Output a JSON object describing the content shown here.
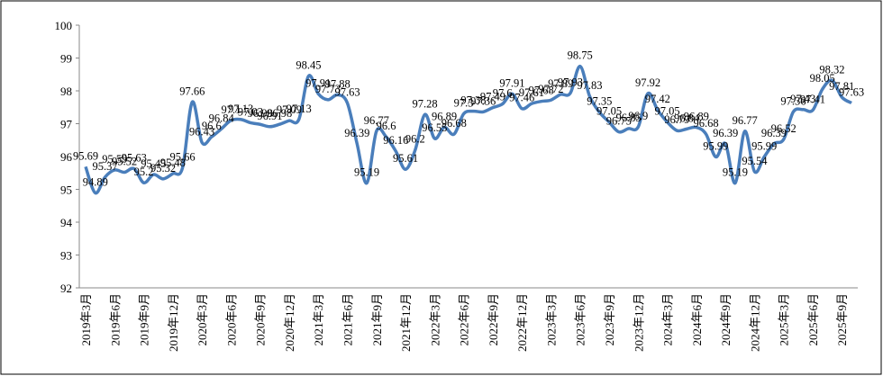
{
  "chart_data": {
    "type": "line",
    "categories": [
      "2019年3月",
      null,
      null,
      "2019年6月",
      null,
      null,
      "2019年9月",
      null,
      null,
      "2019年12月",
      null,
      null,
      "2020年3月",
      null,
      null,
      "2020年6月",
      null,
      null,
      "2020年9月",
      null,
      null,
      "2020年12月",
      null,
      null,
      "2021年3月",
      null,
      null,
      "2021年6月",
      null,
      null,
      "2021年9月",
      null,
      null,
      "2021年12月",
      null,
      null,
      "2022年3月",
      null,
      null,
      "2022年6月",
      null,
      null,
      "2022年9月",
      null,
      null,
      "2022年12月",
      null,
      null,
      "2023年3月",
      null,
      null,
      "2023年6月",
      null,
      null,
      "2023年9月",
      null,
      null,
      "2023年12月",
      null,
      null,
      "2024年3月",
      null,
      null,
      "2024年6月",
      null,
      null,
      "2024年9月",
      null,
      null,
      "2024年12月",
      null,
      null,
      "2025年3月",
      null,
      null,
      "2025年6月",
      null,
      null,
      "2025年9月",
      null
    ],
    "series": [
      {
        "color": "#4a7ebb",
        "values": [
          95.69,
          94.89,
          95.37,
          95.59,
          95.52,
          95.63,
          95.2,
          95.45,
          95.32,
          95.48,
          95.66,
          97.66,
          96.43,
          96.6,
          96.84,
          97.1,
          97.13,
          97.03,
          96.98,
          96.91,
          96.98,
          97.09,
          97.13,
          98.45,
          97.91,
          97.73,
          97.88,
          97.63,
          96.39,
          95.19,
          96.77,
          96.6,
          96.16,
          95.61,
          96.2,
          97.28,
          96.55,
          96.89,
          96.68,
          97.3,
          97.38,
          97.36,
          97.49,
          97.6,
          97.91,
          97.46,
          97.61,
          97.68,
          97.72,
          97.89,
          97.93,
          98.75,
          97.83,
          97.35,
          97.05,
          96.75,
          96.85,
          96.9,
          97.92,
          97.42,
          97.05,
          96.79,
          96.84,
          96.89,
          96.68,
          95.99,
          96.39,
          95.19,
          96.77,
          95.54,
          95.99,
          96.39,
          96.52,
          97.36,
          97.43,
          97.41,
          98.05,
          98.32,
          97.81,
          97.63
        ]
      }
    ],
    "ylim": [
      92,
      100
    ],
    "yticks": [
      92,
      93,
      94,
      95,
      96,
      97,
      98,
      99,
      100
    ],
    "grid": false
  }
}
